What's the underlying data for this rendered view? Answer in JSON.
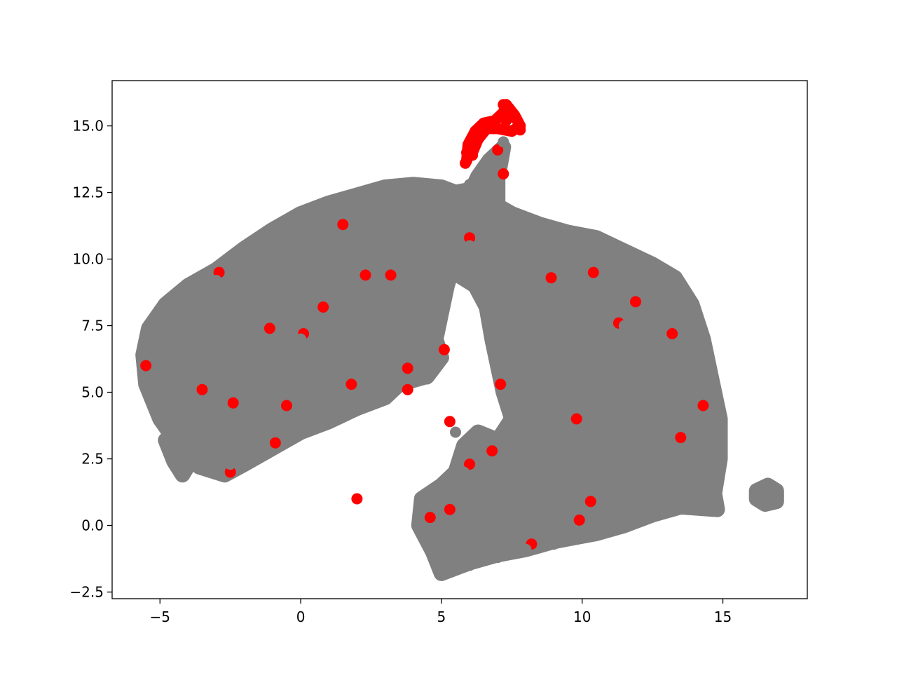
{
  "chart_data": {
    "type": "scatter",
    "title": "",
    "xlabel": "",
    "ylabel": "",
    "xlim": [
      -6.7,
      18.0
    ],
    "ylim": [
      -2.75,
      16.7
    ],
    "grid": false,
    "legend": "none",
    "x_ticks": [
      -5,
      0,
      5,
      10,
      15
    ],
    "x_tick_labels": [
      "−5",
      "0",
      "5",
      "10",
      "15"
    ],
    "y_ticks": [
      -2.5,
      0.0,
      2.5,
      5.0,
      7.5,
      10.0,
      12.5,
      15.0
    ],
    "y_tick_labels": [
      "−2.5",
      "0.0",
      "2.5",
      "5.0",
      "7.5",
      "10.0",
      "12.5",
      "15.0"
    ],
    "colors": {
      "highlight": "#ff0000",
      "background": "#808080"
    },
    "series": [
      {
        "color": "#ff0000",
        "points": [
          [
            -5.5,
            6.0
          ],
          [
            -2.4,
            4.6
          ],
          [
            -3.5,
            5.1
          ],
          [
            -0.9,
            3.1
          ],
          [
            -2.9,
            9.5
          ],
          [
            0.1,
            7.2
          ],
          [
            0.8,
            8.2
          ],
          [
            1.5,
            11.3
          ],
          [
            3.2,
            9.4
          ],
          [
            3.8,
            5.9
          ],
          [
            3.8,
            5.1
          ],
          [
            5.1,
            6.6
          ],
          [
            6.0,
            10.8
          ],
          [
            6.8,
            2.8
          ],
          [
            6.0,
            2.3
          ],
          [
            7.1,
            5.3
          ],
          [
            8.2,
            -0.7
          ],
          [
            9.8,
            4.0
          ],
          [
            8.9,
            9.3
          ],
          [
            10.4,
            9.5
          ],
          [
            11.9,
            8.4
          ],
          [
            11.3,
            7.6
          ],
          [
            13.5,
            3.3
          ],
          [
            14.3,
            4.5
          ],
          [
            10.3,
            0.9
          ],
          [
            9.9,
            0.2
          ],
          [
            13.2,
            7.2
          ],
          [
            5.3,
            3.9
          ],
          [
            2.3,
            9.4
          ],
          [
            -1.1,
            7.4
          ],
          [
            1.8,
            5.3
          ],
          [
            7.7,
            14.9
          ],
          [
            7.3,
            15.2
          ],
          [
            7.2,
            15.8
          ],
          [
            7.6,
            15.3
          ],
          [
            6.9,
            15.0
          ],
          [
            6.5,
            15.1
          ],
          [
            6.2,
            14.8
          ],
          [
            6.0,
            14.4
          ],
          [
            5.9,
            14.0
          ],
          [
            5.85,
            13.6
          ],
          [
            6.1,
            13.9
          ],
          [
            7.8,
            14.85
          ],
          [
            7.0,
            14.1
          ],
          [
            7.2,
            13.2
          ],
          [
            4.6,
            0.3
          ],
          [
            5.3,
            0.6
          ],
          [
            2.0,
            1.0
          ],
          [
            -2.5,
            2.0
          ],
          [
            -0.5,
            4.5
          ]
        ]
      },
      {
        "color": "#808080",
        "points": [
          [
            -5.2,
            5.5
          ],
          [
            -4.5,
            7.5
          ],
          [
            -4.0,
            8.2
          ],
          [
            -3.0,
            9.2
          ],
          [
            -2.0,
            10.0
          ],
          [
            -1.0,
            10.8
          ],
          [
            0.0,
            11.4
          ],
          [
            1.0,
            11.9
          ],
          [
            2.0,
            12.2
          ],
          [
            3.0,
            12.5
          ],
          [
            4.0,
            12.6
          ],
          [
            5.0,
            12.4
          ],
          [
            6.0,
            12.8
          ],
          [
            6.5,
            13.2
          ],
          [
            7.2,
            14.4
          ],
          [
            -3.5,
            6.0
          ],
          [
            -2.0,
            7.0
          ],
          [
            -1.0,
            6.5
          ],
          [
            0.0,
            7.0
          ],
          [
            1.0,
            7.5
          ],
          [
            2.0,
            8.0
          ],
          [
            3.0,
            7.5
          ],
          [
            4.0,
            8.5
          ],
          [
            5.0,
            9.0
          ],
          [
            -2.5,
            5.5
          ],
          [
            -1.5,
            5.0
          ],
          [
            0.0,
            5.5
          ],
          [
            1.5,
            5.8
          ],
          [
            3.0,
            6.0
          ],
          [
            4.5,
            5.5
          ],
          [
            -3.0,
            3.5
          ],
          [
            -2.0,
            3.0
          ],
          [
            -1.0,
            3.5
          ],
          [
            0.0,
            4.0
          ],
          [
            -4.2,
            2.2
          ],
          [
            -4.3,
            4.0
          ],
          [
            -3.5,
            2.5
          ],
          [
            -2.5,
            2.3
          ],
          [
            6.0,
            10.5
          ],
          [
            7.0,
            11.0
          ],
          [
            8.0,
            11.3
          ],
          [
            9.0,
            11.0
          ],
          [
            10.0,
            10.6
          ],
          [
            11.0,
            10.2
          ],
          [
            12.0,
            9.7
          ],
          [
            13.0,
            9.2
          ],
          [
            13.5,
            8.0
          ],
          [
            14.0,
            6.5
          ],
          [
            14.5,
            5.0
          ],
          [
            14.8,
            3.5
          ],
          [
            14.5,
            2.0
          ],
          [
            14.8,
            0.8
          ],
          [
            13.0,
            1.0
          ],
          [
            12.0,
            0.5
          ],
          [
            11.0,
            0.0
          ],
          [
            10.0,
            -0.3
          ],
          [
            9.0,
            -0.7
          ],
          [
            8.0,
            -0.9
          ],
          [
            7.0,
            -1.2
          ],
          [
            6.0,
            -1.5
          ],
          [
            5.0,
            -1.8
          ],
          [
            4.5,
            0.8
          ],
          [
            5.5,
            1.5
          ],
          [
            6.5,
            2.5
          ],
          [
            7.5,
            3.5
          ],
          [
            8.5,
            4.5
          ],
          [
            9.5,
            5.5
          ],
          [
            10.5,
            6.5
          ],
          [
            11.5,
            7.5
          ],
          [
            12.5,
            8.5
          ],
          [
            7.5,
            6.0
          ],
          [
            8.0,
            7.5
          ],
          [
            9.0,
            8.0
          ],
          [
            10.0,
            8.5
          ],
          [
            11.0,
            9.0
          ],
          [
            12.0,
            6.0
          ],
          [
            13.0,
            5.0
          ],
          [
            11.0,
            4.0
          ],
          [
            10.0,
            3.0
          ],
          [
            9.0,
            2.0
          ],
          [
            8.0,
            1.0
          ],
          [
            7.0,
            0.5
          ],
          [
            6.0,
            0.0
          ],
          [
            12.0,
            3.0
          ],
          [
            13.0,
            2.5
          ],
          [
            7.2,
            8.0
          ],
          [
            7.5,
            9.5
          ],
          [
            6.5,
            9.5
          ],
          [
            16.3,
            1.2
          ],
          [
            16.6,
            1.0
          ],
          [
            16.8,
            1.3
          ],
          [
            16.5,
            1.0
          ],
          [
            5.5,
            3.5
          ],
          [
            6.0,
            3.0
          ],
          [
            5.8,
            2.0
          ]
        ]
      }
    ]
  }
}
